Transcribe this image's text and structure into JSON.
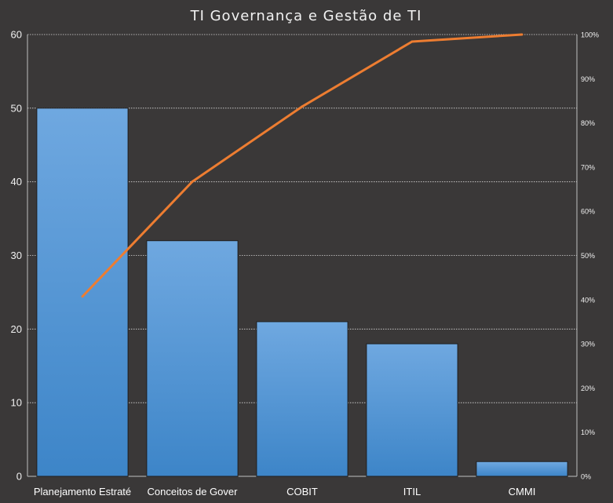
{
  "chart_data": {
    "type": "bar",
    "title": "TI Governança e Gestão de TI",
    "categories": [
      "Planejamento Estraté",
      "Conceitos de Gover",
      "COBIT",
      "ITIL",
      "CMMI"
    ],
    "series": [
      {
        "type": "bar",
        "axis": "left",
        "values": [
          50,
          32,
          21,
          18,
          2
        ]
      },
      {
        "type": "line",
        "axis": "right",
        "values": [
          40.7,
          66.7,
          83.7,
          98.4,
          100
        ]
      }
    ],
    "y_left": {
      "range": [
        0,
        60
      ],
      "ticks": [
        "0",
        "10",
        "20",
        "30",
        "40",
        "50",
        "60"
      ]
    },
    "y_right": {
      "range": [
        0,
        100
      ],
      "ticks": [
        "0%",
        "10%",
        "20%",
        "30%",
        "40%",
        "50%",
        "60%",
        "70%",
        "80%",
        "90%",
        "100%"
      ]
    },
    "grid": true,
    "colors": {
      "bar_top": "#6fa8e0",
      "bar_bottom": "#3d85c8",
      "line": "#ed7d31",
      "background": "#3a3838",
      "grid": "#d9d9d9"
    }
  }
}
